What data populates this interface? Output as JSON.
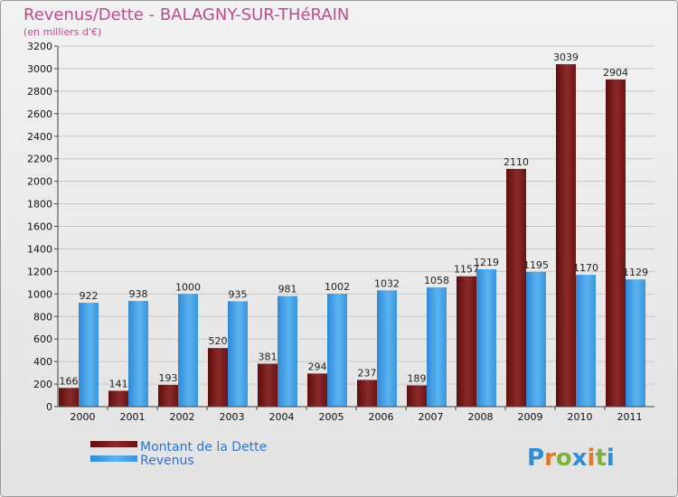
{
  "chart_data": {
    "type": "bar",
    "title": "Revenus/Dette - BALAGNY-SUR-THéRAIN",
    "subtitle": "(en milliers d'€)",
    "categories": [
      "2000",
      "2001",
      "2002",
      "2003",
      "2004",
      "2005",
      "2006",
      "2007",
      "2008",
      "2009",
      "2010",
      "2011"
    ],
    "series": [
      {
        "name": "Montant de la Dette",
        "color": "#7a1c1c",
        "values": [
          166,
          141,
          193,
          520,
          381,
          294,
          237,
          189,
          1157,
          2110,
          3039,
          2904
        ]
      },
      {
        "name": "Revenus",
        "color": "#3f9ee6",
        "values": [
          922,
          938,
          1000,
          935,
          981,
          1002,
          1032,
          1058,
          1219,
          1195,
          1170,
          1129
        ]
      }
    ],
    "ylim": [
      0,
      3200
    ],
    "ytick_step": 200,
    "grid": true,
    "legend": "bottom-left"
  },
  "logo_text": "Proxiti"
}
